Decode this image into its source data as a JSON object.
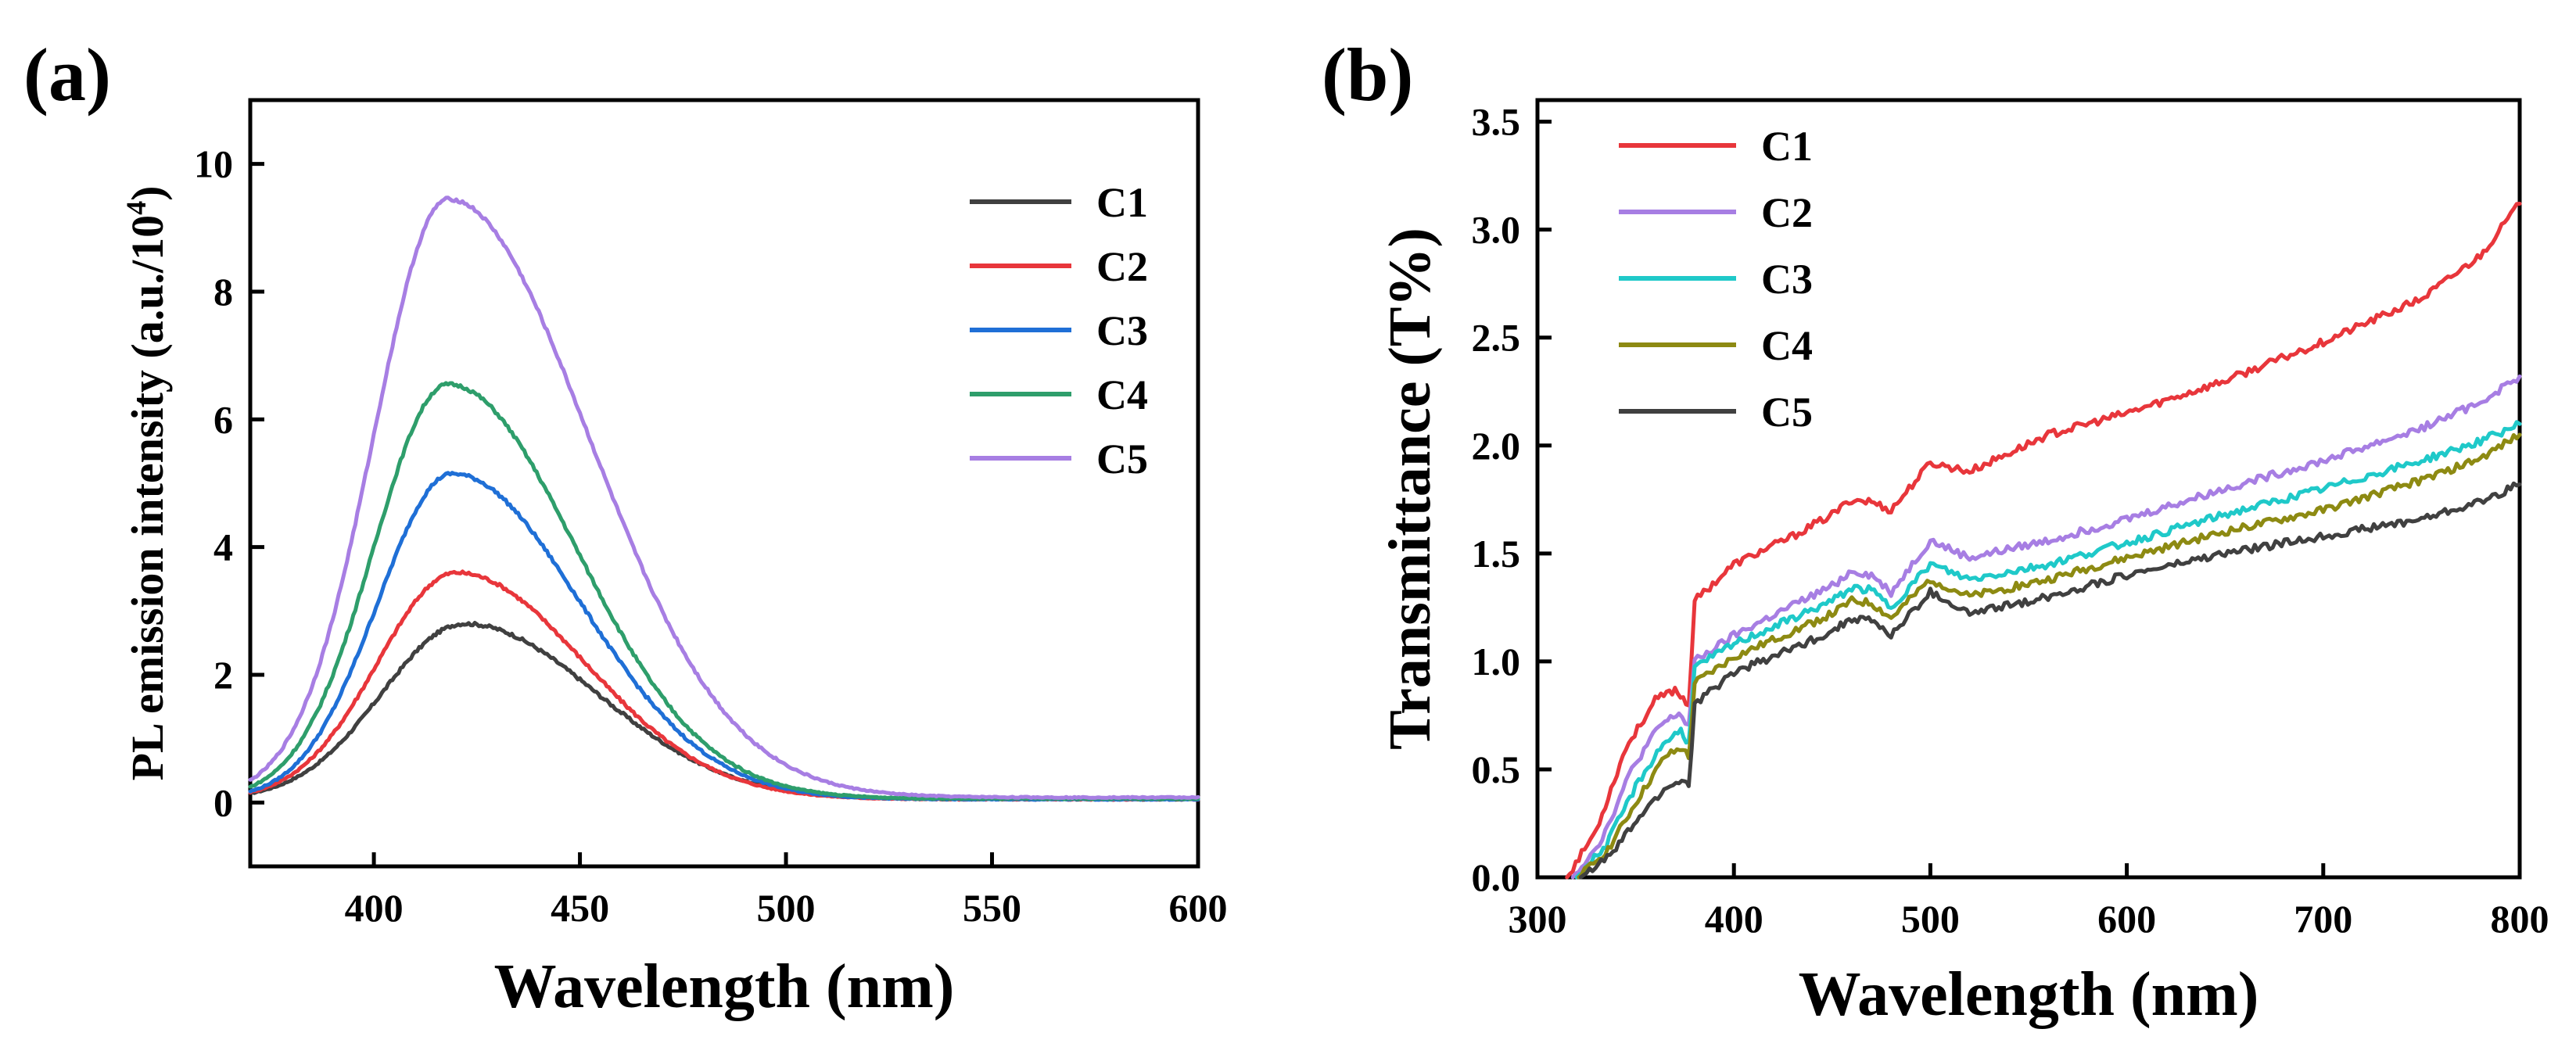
{
  "chart_data": [
    {
      "panel_label": "(a)",
      "type": "line",
      "xlabel": "Wavelength (nm)",
      "ylabel": "PL emission intensity (a.u./10",
      "ylabel_superscript": "4",
      "ylabel_suffix": ")",
      "xlim": [
        370,
        600
      ],
      "ylim": [
        -1,
        11
      ],
      "xticks": [
        400,
        450,
        500,
        550,
        600
      ],
      "yticks": [
        0,
        2,
        4,
        6,
        8,
        10
      ],
      "legend_position": "top-right",
      "series": [
        {
          "name": "C1",
          "color": "#404040",
          "peak_x": 422,
          "peak_y": 2.8,
          "left_width": 20,
          "right_width": 32,
          "floor": 0.05
        },
        {
          "name": "C2",
          "color": "#e8363b",
          "peak_x": 420,
          "peak_y": 3.6,
          "left_width": 19,
          "right_width": 31,
          "floor": 0.05
        },
        {
          "name": "C3",
          "color": "#1f6fd6",
          "peak_x": 419,
          "peak_y": 5.15,
          "left_width": 18,
          "right_width": 31,
          "floor": 0.05
        },
        {
          "name": "C4",
          "color": "#2e9e6b",
          "peak_x": 418,
          "peak_y": 6.55,
          "left_width": 18,
          "right_width": 31,
          "floor": 0.06
        },
        {
          "name": "C5",
          "color": "#a77ee3",
          "peak_x": 418,
          "peak_y": 9.45,
          "left_width": 18,
          "right_width": 34,
          "floor": 0.08
        }
      ]
    },
    {
      "panel_label": "(b)",
      "type": "line",
      "xlabel": "Wavelength (nm)",
      "ylabel": "Transmittance (T%)",
      "xlim": [
        300,
        800
      ],
      "ylim": [
        0,
        3.6
      ],
      "xticks": [
        300,
        400,
        500,
        600,
        700,
        800
      ],
      "yticks": [
        0.0,
        0.5,
        1.0,
        1.5,
        2.0,
        2.5,
        3.0,
        3.5
      ],
      "ytick_labels": [
        "0.0",
        "0.5",
        "1.0",
        "1.5",
        "2.0",
        "2.5",
        "3.0",
        "3.5"
      ],
      "legend_position": "top-left",
      "series": [
        {
          "name": "C1",
          "color": "#e8363b",
          "x": [
            315,
            330,
            345,
            360,
            370,
            377,
            380,
            400,
            430,
            450,
            460,
            470,
            480,
            500,
            520,
            560,
            600,
            650,
            700,
            750,
            780,
            800
          ],
          "y": [
            0.0,
            0.22,
            0.6,
            0.82,
            0.87,
            0.8,
            1.28,
            1.45,
            1.58,
            1.68,
            1.75,
            1.74,
            1.7,
            1.92,
            1.88,
            2.05,
            2.15,
            2.3,
            2.48,
            2.68,
            2.88,
            3.12
          ]
        },
        {
          "name": "C2",
          "color": "#a77ee3",
          "x": [
            318,
            333,
            348,
            362,
            372,
            377,
            380,
            400,
            430,
            450,
            460,
            470,
            480,
            500,
            520,
            560,
            600,
            650,
            700,
            750,
            780,
            800
          ],
          "y": [
            0.0,
            0.18,
            0.5,
            0.7,
            0.76,
            0.7,
            1.0,
            1.12,
            1.26,
            1.35,
            1.42,
            1.4,
            1.32,
            1.56,
            1.48,
            1.56,
            1.66,
            1.8,
            1.93,
            2.08,
            2.2,
            2.32
          ]
        },
        {
          "name": "C3",
          "color": "#1fc9c9",
          "x": [
            320,
            335,
            350,
            364,
            373,
            377,
            380,
            400,
            430,
            450,
            460,
            470,
            480,
            500,
            520,
            560,
            600,
            650,
            700,
            750,
            780,
            800
          ],
          "y": [
            0.0,
            0.15,
            0.42,
            0.62,
            0.68,
            0.62,
            0.97,
            1.08,
            1.2,
            1.28,
            1.34,
            1.33,
            1.25,
            1.45,
            1.38,
            1.45,
            1.55,
            1.68,
            1.8,
            1.93,
            2.02,
            2.1
          ]
        },
        {
          "name": "C4",
          "color": "#8d8a12",
          "x": [
            321,
            336,
            351,
            365,
            374,
            377,
            380,
            400,
            430,
            450,
            460,
            470,
            480,
            500,
            520,
            560,
            600,
            650,
            700,
            750,
            780,
            800
          ],
          "y": [
            0.0,
            0.13,
            0.36,
            0.56,
            0.6,
            0.55,
            0.9,
            1.02,
            1.14,
            1.22,
            1.28,
            1.27,
            1.2,
            1.38,
            1.3,
            1.38,
            1.48,
            1.6,
            1.7,
            1.84,
            1.94,
            2.05
          ]
        },
        {
          "name": "C5",
          "color": "#404040",
          "x": [
            322,
            337,
            352,
            366,
            375,
            377,
            380,
            400,
            430,
            450,
            460,
            470,
            480,
            500,
            520,
            560,
            600,
            650,
            700,
            750,
            780,
            800
          ],
          "y": [
            0.0,
            0.1,
            0.28,
            0.42,
            0.45,
            0.42,
            0.8,
            0.95,
            1.06,
            1.14,
            1.2,
            1.19,
            1.12,
            1.32,
            1.22,
            1.3,
            1.4,
            1.5,
            1.58,
            1.66,
            1.74,
            1.82
          ]
        }
      ]
    }
  ]
}
